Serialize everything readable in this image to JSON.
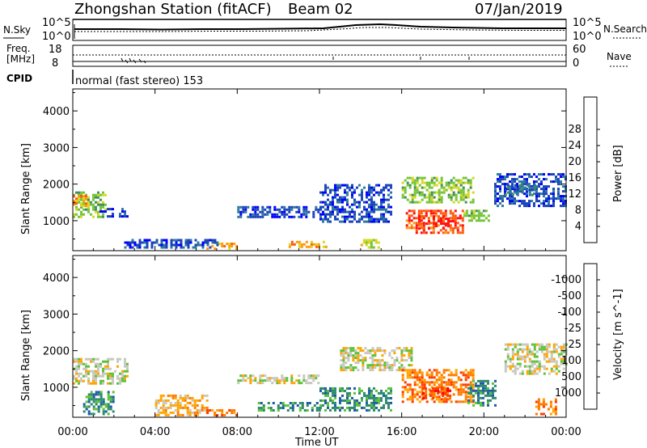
{
  "header": {
    "station": "Zhongshan Station (fitACF)",
    "beam": "Beam 02",
    "date": "07/Jan/2019",
    "cpid_text": "normal (fast stereo) 153"
  },
  "strips": {
    "sky_label": "N.Sky",
    "sky_ticks": [
      "10^5",
      "10^0"
    ],
    "search_label": "N.Search",
    "search_ticks": [
      "10^5",
      "10^0"
    ],
    "freq_label_line1": "Freq.",
    "freq_label_line2": "[MHz]",
    "freq_ticks": [
      "18",
      "8"
    ],
    "nave_label": "Nave",
    "nave_ticks": [
      "60",
      "0"
    ],
    "cpid_label": "CPID"
  },
  "chart_data": [
    {
      "type": "heatmap",
      "title": "",
      "xlabel": "",
      "ylabel": "Slant Range [km]",
      "x_tick_labels": [
        "00:00",
        "04:00",
        "08:00",
        "12:00",
        "16:00",
        "20:00",
        "00:00"
      ],
      "y_tick_labels": [
        "1000",
        "2000",
        "3000",
        "4000"
      ],
      "y_ticks": [
        1000,
        2000,
        3000,
        4000
      ],
      "xlim": [
        0,
        24
      ],
      "ylim": [
        180,
        4600
      ],
      "colorbar": {
        "label": "Power [dB]",
        "tick_labels": [
          "4",
          "8",
          "12",
          "16",
          "20",
          "24",
          "28"
        ],
        "colors": [
          "#0000ff",
          "#1a44b8",
          "#2e7a9e",
          "#3f8f5e",
          "#74c43a",
          "#d8d820",
          "#ff9a10",
          "#ff5a10",
          "#ff1010"
        ]
      },
      "regions": [
        {
          "x": [
            0.0,
            1.6
          ],
          "y": [
            1100,
            1800
          ],
          "level": 4
        },
        {
          "x": [
            0.0,
            0.6
          ],
          "y": [
            1400,
            1700
          ],
          "level": 6
        },
        {
          "x": [
            1.3,
            2.6
          ],
          "y": [
            1150,
            1350
          ],
          "level": 1
        },
        {
          "x": [
            2.5,
            7.0
          ],
          "y": [
            300,
            500
          ],
          "level": 1
        },
        {
          "x": [
            6.5,
            8.0
          ],
          "y": [
            250,
            400
          ],
          "level": 6
        },
        {
          "x": [
            8.0,
            12.0
          ],
          "y": [
            1100,
            1400
          ],
          "level": 1
        },
        {
          "x": [
            10.5,
            12.3
          ],
          "y": [
            280,
            450
          ],
          "level": 6
        },
        {
          "x": [
            12.0,
            15.5
          ],
          "y": [
            1000,
            2000
          ],
          "level": 1
        },
        {
          "x": [
            14.0,
            15.0
          ],
          "y": [
            300,
            500
          ],
          "level": 5
        },
        {
          "x": [
            16.0,
            19.5
          ],
          "y": [
            1500,
            2200
          ],
          "level": 4
        },
        {
          "x": [
            16.2,
            19.0
          ],
          "y": [
            700,
            1300
          ],
          "level": 7
        },
        {
          "x": [
            16.8,
            18.5
          ],
          "y": [
            800,
            1150
          ],
          "level": 8
        },
        {
          "x": [
            19.0,
            20.2
          ],
          "y": [
            1000,
            1300
          ],
          "level": 4
        },
        {
          "x": [
            20.5,
            24.0
          ],
          "y": [
            1400,
            2300
          ],
          "level": 1
        },
        {
          "x": [
            21.0,
            22.5
          ],
          "y": [
            1700,
            2000
          ],
          "level": 2
        }
      ]
    },
    {
      "type": "heatmap",
      "title": "",
      "xlabel": "Time UT",
      "ylabel": "Slant Range [km]",
      "x_tick_labels": [
        "00:00",
        "04:00",
        "08:00",
        "12:00",
        "16:00",
        "20:00",
        "00:00"
      ],
      "y_tick_labels": [
        "1000",
        "2000",
        "3000",
        "4000"
      ],
      "y_ticks": [
        1000,
        2000,
        3000,
        4000
      ],
      "xlim": [
        0,
        24
      ],
      "ylim": [
        180,
        4600
      ],
      "colorbar": {
        "label": "Velocity [m s^-1]",
        "tick_labels": [
          "1000",
          "500",
          "100",
          "25",
          "-25",
          "-100",
          "-500",
          "-1000"
        ],
        "colors": [
          "#0000cc",
          "#1f5aa8",
          "#2e8a6e",
          "#5cc23a",
          "#c8c8c0",
          "#ffa500",
          "#ff7a00",
          "#ff3a00",
          "#ff0000"
        ]
      },
      "regions": [
        {
          "x": [
            0.0,
            2.6
          ],
          "y": [
            1100,
            1800
          ],
          "level": 4
        },
        {
          "x": [
            0.5,
            2.0
          ],
          "y": [
            300,
            900
          ],
          "level": 2
        },
        {
          "x": [
            4.0,
            6.5
          ],
          "y": [
            250,
            800
          ],
          "level": 5
        },
        {
          "x": [
            6.5,
            8.0
          ],
          "y": [
            230,
            400
          ],
          "level": 6
        },
        {
          "x": [
            8.0,
            12.0
          ],
          "y": [
            1150,
            1350
          ],
          "level": 4
        },
        {
          "x": [
            9.0,
            12.0
          ],
          "y": [
            350,
            600
          ],
          "level": 2
        },
        {
          "x": [
            12.0,
            15.5
          ],
          "y": [
            400,
            1000
          ],
          "level": 2
        },
        {
          "x": [
            13.0,
            16.5
          ],
          "y": [
            1500,
            2100
          ],
          "level": 4
        },
        {
          "x": [
            16.0,
            19.5
          ],
          "y": [
            600,
            1500
          ],
          "level": 6
        },
        {
          "x": [
            17.0,
            18.3
          ],
          "y": [
            700,
            1000
          ],
          "level": 7
        },
        {
          "x": [
            19.2,
            20.5
          ],
          "y": [
            500,
            1200
          ],
          "level": 2
        },
        {
          "x": [
            21.0,
            24.0
          ],
          "y": [
            1400,
            2200
          ],
          "level": 4
        },
        {
          "x": [
            22.5,
            23.5
          ],
          "y": [
            300,
            700
          ],
          "level": 6
        }
      ]
    }
  ]
}
